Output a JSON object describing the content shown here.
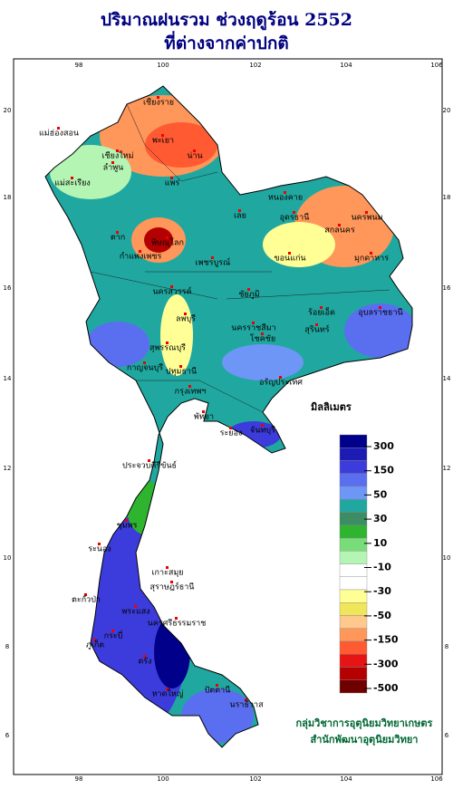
{
  "title": [
    "ปริมาณฝนรวม ช่วงฤดูร้อน 2552",
    "ที่ต่างจากค่าปกติ"
  ],
  "lon_labels": [
    "98",
    "100",
    "102",
    "104",
    "106"
  ],
  "lat_labels": [
    "20",
    "18",
    "16",
    "14",
    "12",
    "10",
    "8",
    "6"
  ],
  "places": [
    "เชียงราย",
    "พะเยา",
    "น่าน",
    "แม่ฮ่องสอน",
    "เชียงใหม่",
    "ลำพูน",
    "แพร่",
    "แม่สะเรียง",
    "หนองคาย",
    "อุดรธานี",
    "สกลนคร",
    "นครพนม",
    "เลย",
    "ตาก",
    "พิษณุโลก",
    "มุกดาหาร",
    "กำแพงเพชร",
    "เพชรบูรณ์",
    "ขอนแก่น",
    "นครสวรรค์",
    "ชัยภูมิ",
    "ร้อยเอ็ด",
    "อุบลราชธานี",
    "ลพบุรี",
    "นครราชสีมา",
    "สุรินทร์",
    "สุพรรณบุรี",
    "โชคชัย",
    "กาญจนบุรี",
    "ปทุมธานี",
    "กรุงเทพฯ",
    "อรัญประเทศ",
    "พัทยา",
    "ระยอง",
    "จันทบุรี",
    "ประจวบคีรีขันธ์",
    "ชุมพร",
    "ระนอง",
    "เกาะสมุย",
    "สุราษฎร์ธานี",
    "ตะกั่วป่า",
    "พระแสง",
    "นครศรีธรรมราช",
    "ภูเก็ต",
    "กระบี่",
    "ตรัง",
    "หาดใหญ่",
    "ปัตตานี",
    "นราธิวาส"
  ],
  "legend": {
    "title": "มิลลิเมตร",
    "labels": [
      "300",
      "150",
      "50",
      "30",
      "10",
      "-10",
      "-30",
      "-50",
      "-150",
      "-300",
      "-500"
    ],
    "colors": [
      "#00008b",
      "#1c1cb4",
      "#3c3cdc",
      "#5a6ef0",
      "#6e96f6",
      "#20a8a0",
      "#3c8c64",
      "#2eb42e",
      "#78dc78",
      "#b4f5b4",
      "#ffffff",
      "#ffffff",
      "#ffff96",
      "#f0e65a",
      "#ffc88c",
      "#ff965a",
      "#ff5a32",
      "#e61414",
      "#b40000",
      "#6e0000"
    ]
  },
  "credits": [
    "กลุ่มวิชาการอุตุนิยมวิทยาเกษตร",
    "สำนักพัฒนาอุตุนิยมวิทยา"
  ]
}
